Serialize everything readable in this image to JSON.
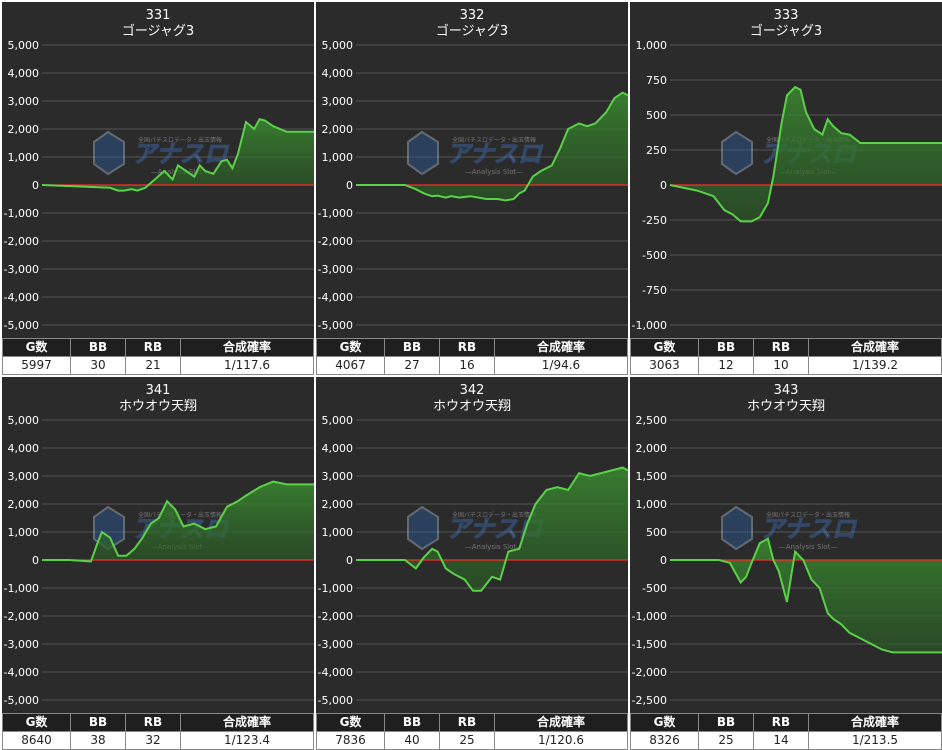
{
  "stat_headers": [
    "G数",
    "BB",
    "RB",
    "合成確率"
  ],
  "watermark": {
    "brand": "アナスロ",
    "sub": "—Analysis Slot—",
    "top": "全国パチスロデータ・出玉情報"
  },
  "colors": {
    "panel_bg": "#2b2b2b",
    "line": "#5bd14a",
    "zero_line": "#ff2a2a",
    "grid": "#555555",
    "text": "#ffffff"
  },
  "panels": [
    {
      "number": "331",
      "name": "ゴージャグ3",
      "stats": [
        "5997",
        "30",
        "21",
        "1/117.6"
      ]
    },
    {
      "number": "332",
      "name": "ゴージャグ3",
      "stats": [
        "4067",
        "27",
        "16",
        "1/94.6"
      ]
    },
    {
      "number": "333",
      "name": "ゴージャグ3",
      "stats": [
        "3063",
        "12",
        "10",
        "1/139.2"
      ]
    },
    {
      "number": "341",
      "name": "ホウオウ天翔",
      "stats": [
        "8640",
        "38",
        "32",
        "1/123.4"
      ]
    },
    {
      "number": "342",
      "name": "ホウオウ天翔",
      "stats": [
        "7836",
        "40",
        "25",
        "1/120.6"
      ]
    },
    {
      "number": "343",
      "name": "ホウオウ天翔",
      "stats": [
        "8326",
        "25",
        "14",
        "1/213.5"
      ]
    }
  ],
  "chart_data": [
    {
      "type": "area",
      "title": "331\nゴージャグ3",
      "ylim": [
        -5000,
        5000
      ],
      "yticks": [
        "5,000",
        "4,000",
        "3,000",
        "2,000",
        "1,000",
        "0",
        "-1,000",
        "-2,000",
        "-3,000",
        "-4,000",
        "-5,000"
      ],
      "x": [
        0,
        15,
        25,
        28,
        30,
        33,
        35,
        38,
        45,
        48,
        50,
        53,
        56,
        58,
        60,
        63,
        66,
        68,
        70,
        72,
        75,
        78,
        80,
        82,
        85,
        90,
        100
      ],
      "y": [
        0,
        -60,
        -100,
        -200,
        -200,
        -150,
        -200,
        -100,
        500,
        200,
        700,
        500,
        300,
        700,
        500,
        400,
        850,
        900,
        600,
        1100,
        2250,
        2000,
        2350,
        2300,
        2100,
        1900,
        1900
      ]
    },
    {
      "type": "area",
      "title": "332\nゴージャグ3",
      "ylim": [
        -5000,
        5000
      ],
      "yticks": [
        "5,000",
        "4,000",
        "3,000",
        "2,000",
        "1,000",
        "0",
        "-1,000",
        "-2,000",
        "-3,000",
        "-4,000",
        "-5,000"
      ],
      "x": [
        0,
        18,
        22,
        25,
        28,
        30,
        33,
        35,
        38,
        42,
        48,
        52,
        55,
        58,
        60,
        62,
        65,
        68,
        72,
        75,
        78,
        82,
        85,
        88,
        92,
        95,
        98,
        100
      ],
      "y": [
        0,
        0,
        -150,
        -300,
        -400,
        -380,
        -450,
        -400,
        -450,
        -400,
        -500,
        -500,
        -550,
        -500,
        -300,
        -200,
        300,
        500,
        700,
        1300,
        2000,
        2200,
        2100,
        2200,
        2600,
        3100,
        3300,
        3200
      ]
    },
    {
      "type": "area",
      "title": "333\nゴージャグ3",
      "ylim": [
        -1000,
        1000
      ],
      "yticks": [
        "1,000",
        "750",
        "500",
        "250",
        "0",
        "-250",
        "-500",
        "-750",
        "-1,000"
      ],
      "x": [
        0,
        10,
        16,
        20,
        23,
        26,
        30,
        33,
        36,
        38,
        41,
        43,
        46,
        48,
        50,
        53,
        56,
        58,
        60,
        63,
        66,
        70,
        100
      ],
      "y": [
        0,
        -40,
        -80,
        -180,
        -210,
        -260,
        -260,
        -230,
        -130,
        60,
        440,
        640,
        700,
        680,
        520,
        400,
        360,
        470,
        420,
        370,
        360,
        300,
        300
      ]
    },
    {
      "type": "area",
      "title": "341\nホウオウ天翔",
      "ylim": [
        -5000,
        5000
      ],
      "yticks": [
        "5,000",
        "4,000",
        "3,000",
        "2,000",
        "1,000",
        "0",
        "-1,000",
        "-2,000",
        "-3,000",
        "-4,000",
        "-5,000"
      ],
      "x": [
        0,
        10,
        18,
        20,
        22,
        25,
        28,
        31,
        34,
        37,
        40,
        43,
        46,
        49,
        52,
        56,
        60,
        64,
        68,
        72,
        75,
        80,
        85,
        90,
        95,
        100
      ],
      "y": [
        0,
        0,
        -50,
        500,
        1000,
        800,
        150,
        150,
        400,
        800,
        1300,
        1500,
        2100,
        1800,
        1200,
        1300,
        1100,
        1200,
        1900,
        2100,
        2300,
        2600,
        2800,
        2700,
        2700,
        2700
      ]
    },
    {
      "type": "area",
      "title": "342\nホウオウ天翔",
      "ylim": [
        -5000,
        5000
      ],
      "yticks": [
        "5,000",
        "4,000",
        "3,000",
        "2,000",
        "1,000",
        "0",
        "-1,000",
        "-2,000",
        "-3,000",
        "-4,000",
        "-5,000"
      ],
      "x": [
        0,
        18,
        22,
        25,
        28,
        30,
        33,
        36,
        40,
        43,
        46,
        50,
        53,
        56,
        60,
        63,
        66,
        70,
        74,
        78,
        82,
        86,
        90,
        94,
        98,
        100
      ],
      "y": [
        0,
        0,
        -300,
        100,
        400,
        300,
        -300,
        -500,
        -700,
        -1100,
        -1100,
        -600,
        -700,
        300,
        400,
        1300,
        2000,
        2500,
        2600,
        2500,
        3100,
        3000,
        3100,
        3200,
        3300,
        3200
      ]
    },
    {
      "type": "area",
      "title": "343\nホウオウ天翔",
      "ylim": [
        -2500,
        2500
      ],
      "yticks": [
        "2,500",
        "2,000",
        "1,500",
        "1,000",
        "500",
        "0",
        "-500",
        "-1,000",
        "-1,500",
        "-2,000",
        "-2,500"
      ],
      "x": [
        0,
        18,
        22,
        26,
        28,
        30,
        33,
        36,
        38,
        40,
        43,
        46,
        49,
        52,
        55,
        58,
        60,
        63,
        66,
        70,
        74,
        78,
        82,
        86,
        90,
        94,
        97,
        100
      ],
      "y": [
        0,
        0,
        -50,
        -400,
        -300,
        -50,
        300,
        380,
        0,
        -200,
        -750,
        150,
        0,
        -350,
        -500,
        -950,
        -1050,
        -1150,
        -1300,
        -1400,
        -1500,
        -1600,
        -1650,
        -1650,
        -1650,
        -1650,
        -1650,
        -1650
      ]
    }
  ]
}
